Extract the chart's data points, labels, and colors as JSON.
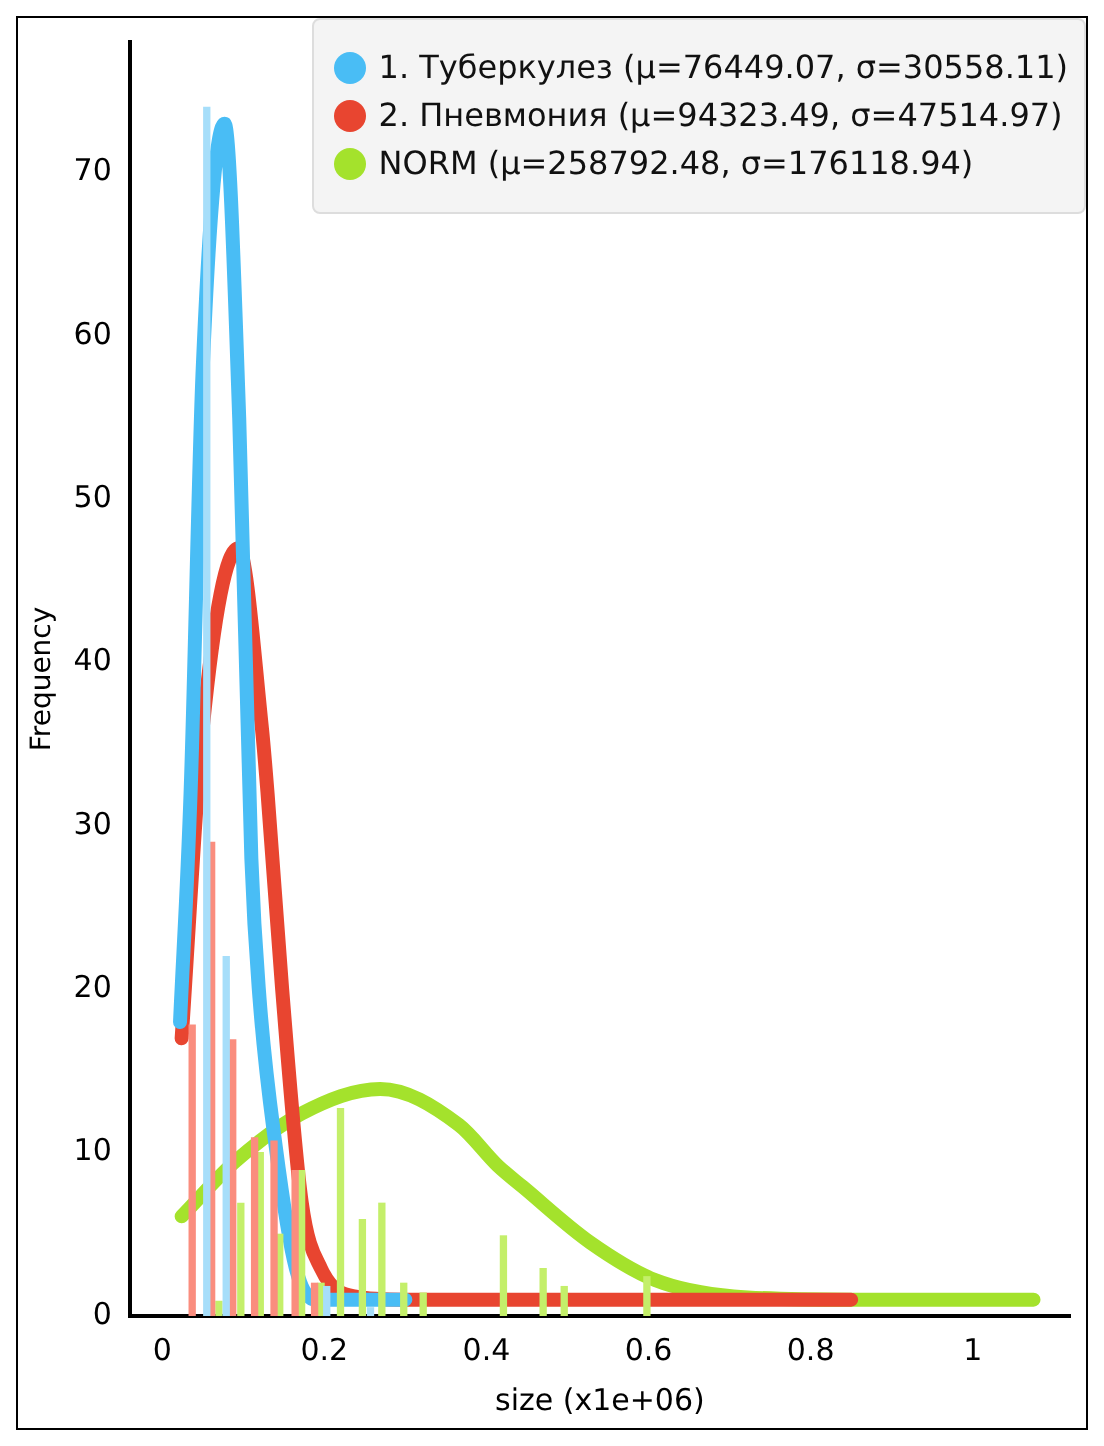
{
  "chart_data": {
    "type": "bar",
    "xlabel": "size (x1e+06)",
    "ylabel": "Frequency",
    "xlim": [
      -0.04,
      1.12
    ],
    "xticks": [
      0,
      0.2,
      0.4,
      0.6,
      0.8,
      1
    ],
    "ylim": [
      0,
      78
    ],
    "yticks": [
      0,
      10,
      20,
      30,
      40,
      50,
      60,
      70
    ],
    "grid": false,
    "legend": "top right",
    "series": [
      {
        "color": "#a6defa",
        "x": [
          0.055,
          0.079,
          0.203,
          0.257
        ],
        "values": [
          74,
          22,
          1.8,
          0.5
        ]
      },
      {
        "color": "#fa8d7e",
        "x": [
          0.037,
          0.061,
          0.087,
          0.114,
          0.138,
          0.164,
          0.188
        ],
        "values": [
          17.8,
          29,
          16.9,
          10.9,
          10.7,
          8.9,
          2
        ]
      },
      {
        "color": "#c4ef6a",
        "x": [
          0.07,
          0.097,
          0.121,
          0.145,
          0.172,
          0.196,
          0.22,
          0.247,
          0.271,
          0.298,
          0.322,
          0.421,
          0.47,
          0.496,
          0.598
        ],
        "values": [
          0.9,
          6.9,
          10,
          5,
          8.9,
          2,
          12.7,
          5.9,
          6.9,
          2,
          1.4,
          4.9,
          2.9,
          1.8,
          2.4
        ]
      },
      {
        "type": "line",
        "name": "1. Туберкулез (μ=76449.07, σ=30558.11)",
        "color": "#49bdf5",
        "x": [
          0.022,
          0.035,
          0.05,
          0.077,
          0.095,
          0.11,
          0.12,
          0.14,
          0.165,
          0.19,
          0.25,
          0.3
        ],
        "values": [
          18,
          32,
          58,
          73,
          55,
          28,
          19.5,
          10.4,
          2.9,
          1,
          1,
          1
        ]
      },
      {
        "type": "line",
        "name": "2. Пневмония (μ=94323.49, σ=47514.97)",
        "color": "#e84530",
        "x": [
          0.024,
          0.05,
          0.094,
          0.123,
          0.13,
          0.148,
          0.172,
          0.196,
          0.237,
          0.3,
          0.85
        ],
        "values": [
          17,
          36,
          47,
          36,
          32,
          20,
          7,
          2.9,
          1.2,
          1,
          1
        ]
      },
      {
        "type": "line",
        "name": "NORM (μ=258792.48, σ=176118.94)",
        "color": "#a4e22c",
        "x": [
          0.024,
          0.091,
          0.172,
          0.269,
          0.366,
          0.414,
          0.445,
          0.528,
          0.608,
          0.705,
          0.85,
          1.075
        ],
        "values": [
          6.1,
          9.5,
          12.4,
          13.9,
          11.7,
          9.2,
          7.9,
          4.5,
          2.2,
          1.2,
          1,
          1
        ]
      }
    ]
  }
}
